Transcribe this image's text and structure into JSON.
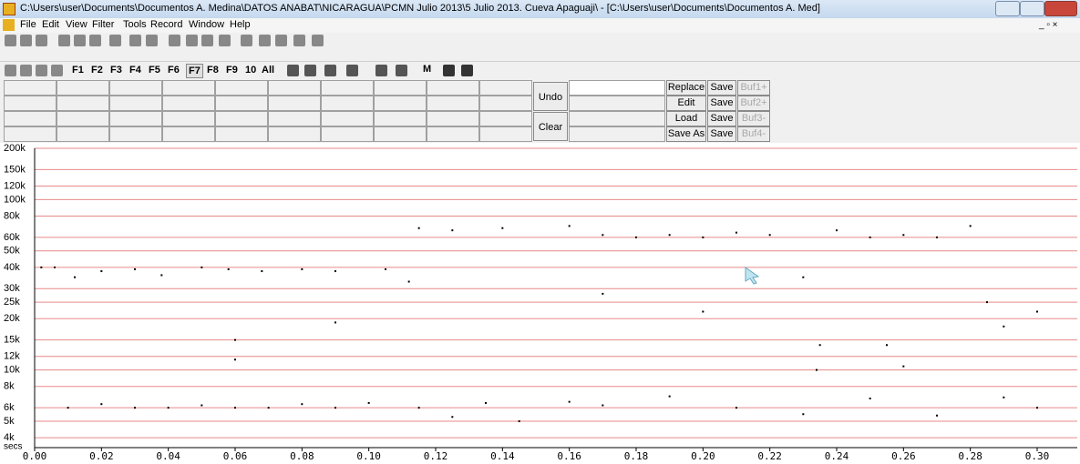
{
  "window": {
    "title": "C:\\Users\\user\\Documents\\Documentos A. Medina\\DATOS ANABAT\\NICARAGUA\\PCMN Julio 2013\\5 Julio 2013. Cueva Apaguaji\\ - [C:\\Users\\user\\Documents\\Documentos A. Med]"
  },
  "menu": [
    "File",
    "Edit",
    "View",
    "Filter",
    "Tools",
    "Record",
    "Window",
    "Help"
  ],
  "toolbar": {
    "function_keys": [
      "F1",
      "F2",
      "F3",
      "F4",
      "F5",
      "F6",
      "F7",
      "F8",
      "F9",
      "10",
      "All"
    ],
    "mark": "M"
  },
  "panel": {
    "undo": "Undo",
    "clear": "Clear",
    "buffer_actions": [
      "Replace",
      "Edit",
      "Load",
      "Save As"
    ],
    "save": [
      "Save",
      "Save",
      "Save",
      "Save"
    ],
    "buffers": [
      "Buf1+",
      "Buf2+",
      "Buf3-",
      "Buf4-"
    ]
  },
  "chart_data": {
    "type": "scatter",
    "color": "#000000",
    "grid": true,
    "log_y": true,
    "grid_color": "#e88a8a",
    "x_label": "secs",
    "xlim": [
      0,
      0.312
    ],
    "ylim": [
      3500,
      200000
    ],
    "xticks": [
      {
        "value": 0,
        "label": "0.00"
      },
      0.02,
      0.04,
      0.06,
      0.08,
      {
        "value": 0.1,
        "label": "0.10"
      },
      0.12,
      0.14,
      0.16,
      0.18,
      {
        "value": 0.2,
        "label": "0.20"
      },
      0.22,
      0.24,
      0.26,
      0.28,
      {
        "value": 0.3,
        "label": "0.30"
      }
    ],
    "yticks": [
      {
        "value": 200000,
        "label": "200k"
      },
      {
        "value": 150000,
        "label": "150k"
      },
      {
        "value": 120000,
        "label": "120k"
      },
      {
        "value": 100000,
        "label": "100k"
      },
      {
        "value": 80000,
        "label": "80k"
      },
      {
        "value": 60000,
        "label": "60k"
      },
      {
        "value": 50000,
        "label": "50k"
      },
      {
        "value": 40000,
        "label": "40k"
      },
      {
        "value": 30000,
        "label": "30k"
      },
      {
        "value": 25000,
        "label": "25k"
      },
      {
        "value": 20000,
        "label": "20k"
      },
      {
        "value": 15000,
        "label": "15k"
      },
      {
        "value": 12000,
        "label": "12k"
      },
      {
        "value": 10000,
        "label": "10k"
      },
      {
        "value": 8000,
        "label": "8k"
      },
      {
        "value": 6000,
        "label": "6k"
      },
      {
        "value": 5000,
        "label": "5k"
      },
      {
        "value": 4000,
        "label": "4k"
      }
    ],
    "x": [
      0.01,
      0.02,
      0.03,
      0.04,
      0.05,
      0.06,
      0.07,
      0.08,
      0.09,
      0.1,
      0.115,
      0.125,
      0.135,
      0.145,
      0.16,
      0.17,
      0.19,
      0.21,
      0.23,
      0.25,
      0.27,
      0.29,
      0.3,
      0.002,
      0.006,
      0.012,
      0.02,
      0.03,
      0.038,
      0.05,
      0.058,
      0.068,
      0.08,
      0.09,
      0.105,
      0.112,
      0.115,
      0.125,
      0.14,
      0.16,
      0.17,
      0.18,
      0.19,
      0.2,
      0.21,
      0.22,
      0.24,
      0.25,
      0.26,
      0.27,
      0.28,
      0.06,
      0.06,
      0.09,
      0.235,
      0.234,
      0.255,
      0.26,
      0.29,
      0.3,
      0.285,
      0.23,
      0.2,
      0.17
    ],
    "values": [
      6000,
      6300,
      6000,
      6000,
      6200,
      6000,
      6000,
      6300,
      6000,
      6400,
      6000,
      5300,
      6400,
      5000,
      6500,
      6200,
      7000,
      6000,
      5500,
      6800,
      5400,
      6900,
      6000,
      40000,
      40000,
      35000,
      38000,
      39000,
      36000,
      40000,
      39000,
      38000,
      39000,
      38000,
      39000,
      33000,
      68000,
      66000,
      68000,
      70000,
      62000,
      60000,
      62000,
      60000,
      64000,
      62000,
      66000,
      60000,
      62000,
      60000,
      70000,
      15000,
      11500,
      19000,
      14000,
      10000,
      14000,
      10500,
      18000,
      22000,
      25000,
      35000,
      22000,
      28000
    ]
  }
}
